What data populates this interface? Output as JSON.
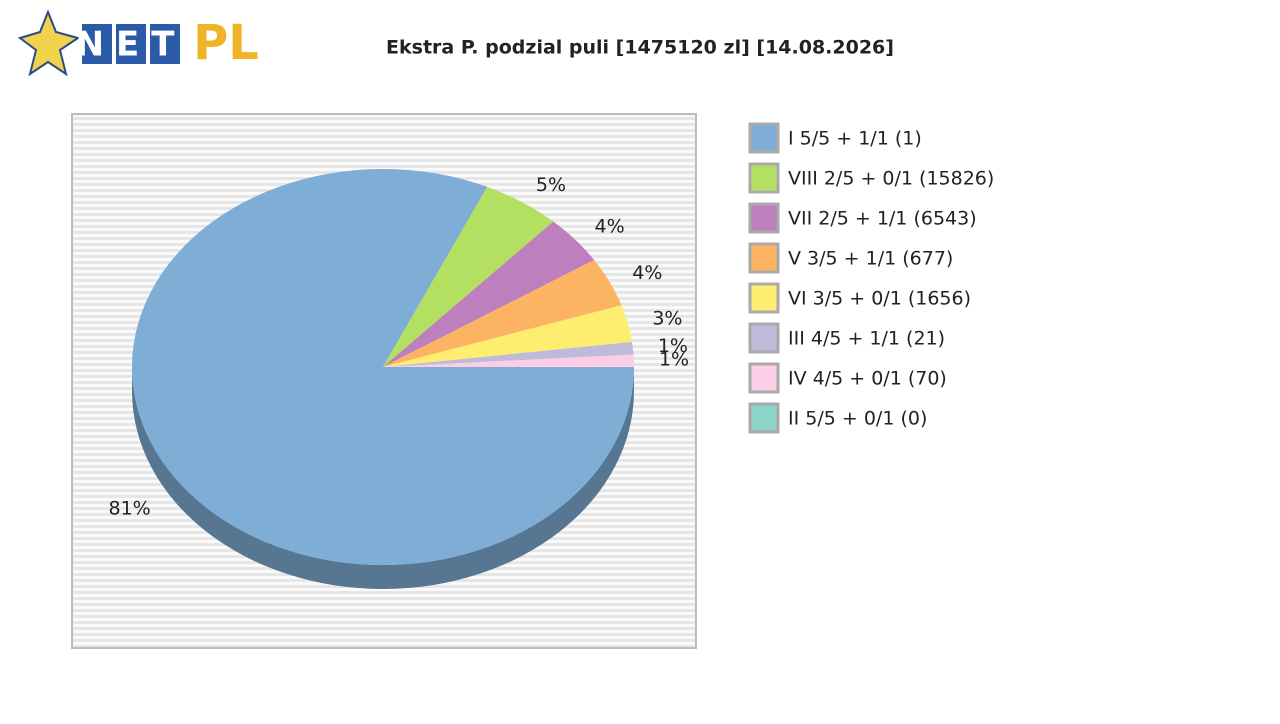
{
  "logo": {
    "net": "NET",
    "pl": "PL"
  },
  "chart_data": {
    "type": "pie",
    "title": "Ekstra P. podzial puli [1475120 zl] [14.08.2026]",
    "categories": [
      "I 5/5 + 1/1 (1)",
      "VIII 2/5 + 0/1 (15826)",
      "VII 2/5 + 1/1 (6543)",
      "V 3/5 + 1/1 (677)",
      "VI 3/5 + 0/1 (1656)",
      "III 4/5 + 1/1 (21)",
      "IV 4/5 + 0/1 (70)",
      "II 5/5 + 0/1 (0)"
    ],
    "values": [
      81,
      5,
      4,
      4,
      3,
      1,
      1,
      0
    ],
    "value_labels": [
      "81%",
      "5%",
      "4%",
      "4%",
      "3%",
      "1%",
      "1%",
      null
    ],
    "colors": [
      "#7eaed5",
      "#b3e060",
      "#bd7fbd",
      "#fdb462",
      "#ffed6f",
      "#bebada",
      "#fccde5",
      "#8dd3c7"
    ],
    "legend": "right"
  }
}
